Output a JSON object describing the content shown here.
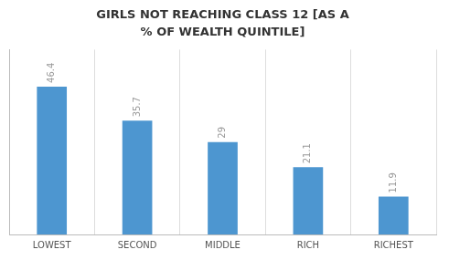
{
  "chart_data": {
    "type": "bar",
    "title": "GIRLS NOT REACHING CLASS 12 [AS A\n% OF WEALTH QUINTILE]",
    "categories": [
      "LOWEST",
      "SECOND",
      "MIDDLE",
      "RICH",
      "RICHEST"
    ],
    "values": [
      46.4,
      35.7,
      29,
      21.1,
      11.9
    ],
    "color": "#4d96d0",
    "ylim": [
      0,
      58
    ],
    "grid": true,
    "data_labels": true,
    "tick_labels": "x"
  }
}
